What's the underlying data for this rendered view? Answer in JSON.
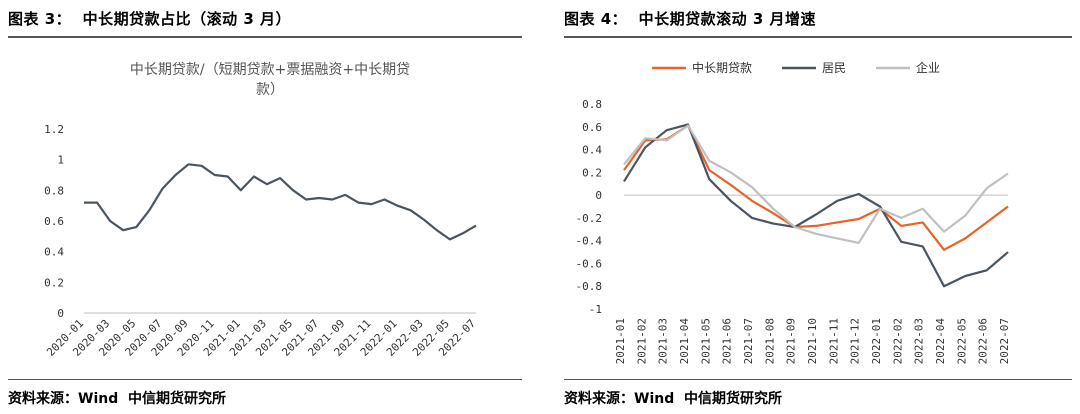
{
  "left": {
    "figure_title": "图表 3：  中长期贷款占比（滚动 3 月）",
    "source": "资料来源：Wind  中信期货研究所"
  },
  "right": {
    "figure_title": "图表 4：  中长期贷款滚动 3 月增速",
    "source": "资料来源：Wind  中信期货研究所"
  },
  "chart_data": [
    {
      "type": "line",
      "title_lines": [
        "中长期贷款/（短期贷款+票据融资+中长期贷",
        "款）"
      ],
      "x": [
        "2020-01",
        "2020-02",
        "2020-03",
        "2020-04",
        "2020-05",
        "2020-06",
        "2020-07",
        "2020-08",
        "2020-09",
        "2020-10",
        "2020-11",
        "2020-12",
        "2021-01",
        "2021-02",
        "2021-03",
        "2021-04",
        "2021-05",
        "2021-06",
        "2021-07",
        "2021-08",
        "2021-09",
        "2021-10",
        "2021-11",
        "2021-12",
        "2022-01",
        "2022-02",
        "2022-03",
        "2022-04",
        "2022-05",
        "2022-06",
        "2022-07"
      ],
      "x_tick_labels": [
        "2020-01",
        "2020-03",
        "2020-05",
        "2020-07",
        "2020-09",
        "2020-11",
        "2021-01",
        "2021-03",
        "2021-05",
        "2021-07",
        "2021-09",
        "2021-11",
        "2022-01",
        "2022-03",
        "2022-05",
        "2022-07"
      ],
      "series": [
        {
          "values": [
            0.72,
            0.72,
            0.6,
            0.54,
            0.56,
            0.67,
            0.81,
            0.9,
            0.97,
            0.96,
            0.9,
            0.89,
            0.8,
            0.89,
            0.84,
            0.88,
            0.8,
            0.74,
            0.75,
            0.74,
            0.77,
            0.72,
            0.71,
            0.74,
            0.7,
            0.67,
            0.61,
            0.54,
            0.48,
            0.52,
            0.57
          ],
          "color": "#4a5560"
        }
      ],
      "y_ticks": [
        "0",
        "0.2",
        "0.4",
        "0.6",
        "0.8",
        "1",
        "1.2"
      ],
      "ylim": [
        0,
        1.2
      ],
      "grid": false,
      "legend": "none"
    },
    {
      "type": "line",
      "x": [
        "2021-01",
        "2021-02",
        "2021-03",
        "2021-04",
        "2021-05",
        "2021-06",
        "2021-07",
        "2021-08",
        "2021-09",
        "2021-10",
        "2021-11",
        "2021-12",
        "2022-01",
        "2022-02",
        "2022-03",
        "2022-04",
        "2022-05",
        "2022-06",
        "2022-07"
      ],
      "x_tick_labels": [
        "2021-01",
        "2021-02",
        "2021-03",
        "2021-04",
        "2021-05",
        "2021-06",
        "2021-07",
        "2021-08",
        "2021-09",
        "2021-10",
        "2021-11",
        "2021-12",
        "2022-01",
        "2022-02",
        "2022-03",
        "2022-04",
        "2022-05",
        "2022-06",
        "2022-07"
      ],
      "series": [
        {
          "name": "中长期贷款",
          "color": "#e8622a",
          "values": [
            0.22,
            0.48,
            0.49,
            0.61,
            0.22,
            0.09,
            -0.05,
            -0.16,
            -0.28,
            -0.27,
            -0.24,
            -0.21,
            -0.12,
            -0.27,
            -0.24,
            -0.48,
            -0.38,
            -0.24,
            -0.1
          ]
        },
        {
          "name": "居民",
          "color": "#4a5560",
          "values": [
            0.12,
            0.42,
            0.57,
            0.62,
            0.14,
            -0.05,
            -0.2,
            -0.25,
            -0.28,
            -0.17,
            -0.05,
            0.01,
            -0.1,
            -0.41,
            -0.45,
            -0.8,
            -0.71,
            -0.66,
            -0.5
          ]
        },
        {
          "name": "企业",
          "color": "#c0c0c0",
          "values": [
            0.27,
            0.5,
            0.48,
            0.61,
            0.3,
            0.2,
            0.07,
            -0.12,
            -0.28,
            -0.34,
            -0.38,
            -0.42,
            -0.12,
            -0.2,
            -0.12,
            -0.32,
            -0.18,
            0.06,
            0.19
          ]
        }
      ],
      "y_ticks": [
        "-1",
        "-0.8",
        "-0.6",
        "-0.4",
        "-0.2",
        "0",
        "0.2",
        "0.4",
        "0.6",
        "0.8"
      ],
      "ylim": [
        -1,
        0.8
      ],
      "grid": false,
      "legend": "top"
    }
  ]
}
